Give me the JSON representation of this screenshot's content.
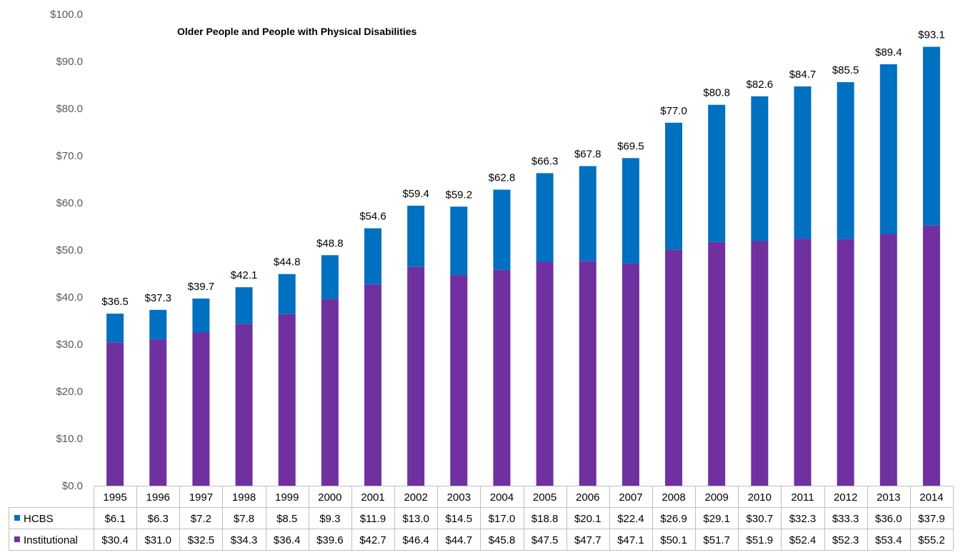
{
  "chart_data": {
    "type": "bar",
    "stacked": true,
    "title": "Older People and People with Physical Disabilities",
    "categories": [
      "1995",
      "1996",
      "1997",
      "1998",
      "1999",
      "2000",
      "2001",
      "2002",
      "2003",
      "2004",
      "2005",
      "2006",
      "2007",
      "2008",
      "2009",
      "2010",
      "2011",
      "2012",
      "2013",
      "2014"
    ],
    "series": [
      {
        "name": "HCBS",
        "color": "#0070c0",
        "values": [
          6.1,
          6.3,
          7.2,
          7.8,
          8.5,
          9.3,
          11.9,
          13.0,
          14.5,
          17.0,
          18.8,
          20.1,
          22.4,
          26.9,
          29.1,
          30.7,
          32.3,
          33.3,
          36.0,
          37.9
        ],
        "labels": [
          "$6.1",
          "$6.3",
          "$7.2",
          "$7.8",
          "$8.5",
          "$9.3",
          "$11.9",
          "$13.0",
          "$14.5",
          "$17.0",
          "$18.8",
          "$20.1",
          "$22.4",
          "$26.9",
          "$29.1",
          "$30.7",
          "$32.3",
          "$33.3",
          "$36.0",
          "$37.9"
        ]
      },
      {
        "name": "Institutional",
        "color": "#7030a0",
        "values": [
          30.4,
          31.0,
          32.5,
          34.3,
          36.4,
          39.6,
          42.7,
          46.4,
          44.7,
          45.8,
          47.5,
          47.7,
          47.1,
          50.1,
          51.7,
          51.9,
          52.4,
          52.3,
          53.4,
          55.2
        ],
        "labels": [
          "$30.4",
          "$31.0",
          "$32.5",
          "$34.3",
          "$36.4",
          "$39.6",
          "$42.7",
          "$46.4",
          "$44.7",
          "$45.8",
          "$47.5",
          "$47.7",
          "$47.1",
          "$50.1",
          "$51.7",
          "$51.9",
          "$52.4",
          "$52.3",
          "$53.4",
          "$55.2"
        ]
      }
    ],
    "totals": [
      "$36.5",
      "$37.3",
      "$39.7",
      "$42.1",
      "$44.8",
      "$48.8",
      "$54.6",
      "$59.4",
      "$59.2",
      "$62.8",
      "$66.3",
      "$67.8",
      "$69.5",
      "$77.0",
      "$80.8",
      "$82.6",
      "$84.7",
      "$85.5",
      "$89.4",
      "$93.1"
    ],
    "ylim": [
      0,
      100
    ],
    "yticks": [
      0,
      10,
      20,
      30,
      40,
      50,
      60,
      70,
      80,
      90,
      100
    ],
    "ytick_labels": [
      "$0.0",
      "$10.0",
      "$20.0",
      "$30.0",
      "$40.0",
      "$50.0",
      "$60.0",
      "$70.0",
      "$80.0",
      "$90.0",
      "$100.0"
    ],
    "grid": false,
    "legend": "data-table",
    "data_table": true
  }
}
